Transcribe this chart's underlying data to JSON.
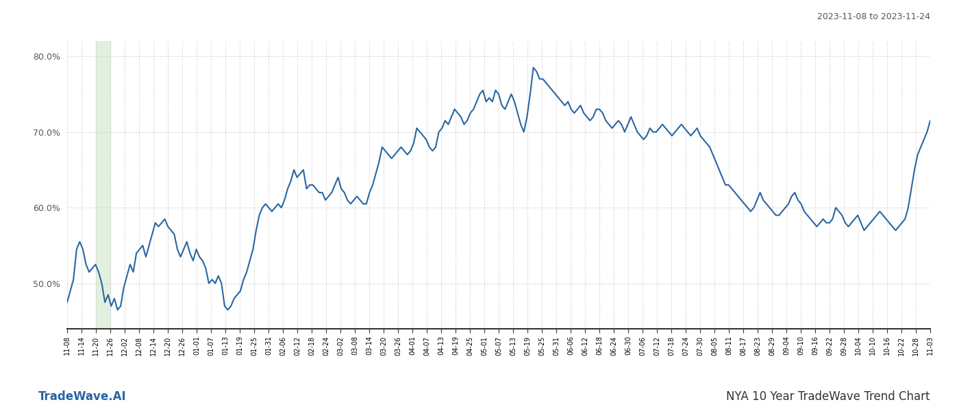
{
  "title_top_right": "2023-11-08 to 2023-11-24",
  "title_bottom_right": "NYA 10 Year TradeWave Trend Chart",
  "title_bottom_left": "TradeWave.AI",
  "line_color": "#2966a3",
  "line_width": 1.5,
  "shade_color": "#d6ecd2",
  "shade_alpha": 0.7,
  "background_color": "#ffffff",
  "grid_color": "#c8c8c8",
  "ylim": [
    44,
    82
  ],
  "yticks": [
    50,
    60,
    70,
    80
  ],
  "xtick_labels": [
    "11-08",
    "11-14",
    "11-20",
    "11-26",
    "12-02",
    "12-08",
    "12-14",
    "12-20",
    "12-26",
    "01-01",
    "01-07",
    "01-13",
    "01-19",
    "01-25",
    "01-31",
    "02-06",
    "02-12",
    "02-18",
    "02-24",
    "03-02",
    "03-08",
    "03-14",
    "03-20",
    "03-26",
    "04-01",
    "04-07",
    "04-13",
    "04-19",
    "04-25",
    "05-01",
    "05-07",
    "05-13",
    "05-19",
    "05-25",
    "05-31",
    "06-06",
    "06-12",
    "06-18",
    "06-24",
    "06-30",
    "07-06",
    "07-12",
    "07-18",
    "07-24",
    "07-30",
    "08-05",
    "08-11",
    "08-17",
    "08-23",
    "08-29",
    "09-04",
    "09-10",
    "09-16",
    "09-22",
    "09-28",
    "10-04",
    "10-10",
    "10-16",
    "10-22",
    "10-28",
    "11-03"
  ],
  "shade_x_start_label": "11-20",
  "shade_x_end_label": "11-26",
  "values": [
    47.5,
    49.0,
    50.5,
    54.5,
    55.5,
    54.5,
    52.5,
    51.5,
    52.0,
    52.5,
    51.5,
    50.0,
    47.5,
    48.5,
    47.0,
    48.0,
    46.5,
    47.0,
    49.5,
    51.0,
    52.5,
    51.5,
    54.0,
    54.5,
    55.0,
    53.5,
    55.0,
    56.5,
    58.0,
    57.5,
    58.0,
    58.5,
    57.5,
    57.0,
    56.5,
    54.5,
    53.5,
    54.5,
    55.5,
    54.0,
    53.0,
    54.5,
    53.5,
    53.0,
    52.0,
    50.0,
    50.5,
    50.0,
    51.0,
    50.0,
    47.0,
    46.5,
    47.0,
    48.0,
    48.5,
    49.0,
    50.5,
    51.5,
    53.0,
    54.5,
    57.0,
    59.0,
    60.0,
    60.5,
    60.0,
    59.5,
    60.0,
    60.5,
    60.0,
    61.0,
    62.5,
    63.5,
    65.0,
    64.0,
    64.5,
    65.0,
    62.5,
    63.0,
    63.0,
    62.5,
    62.0,
    62.0,
    61.0,
    61.5,
    62.0,
    63.0,
    64.0,
    62.5,
    62.0,
    61.0,
    60.5,
    61.0,
    61.5,
    61.0,
    60.5,
    60.5,
    62.0,
    63.0,
    64.5,
    66.0,
    68.0,
    67.5,
    67.0,
    66.5,
    67.0,
    67.5,
    68.0,
    67.5,
    67.0,
    67.5,
    68.5,
    70.5,
    70.0,
    69.5,
    69.0,
    68.0,
    67.5,
    68.0,
    70.0,
    70.5,
    71.5,
    71.0,
    72.0,
    73.0,
    72.5,
    72.0,
    71.0,
    71.5,
    72.5,
    73.0,
    74.0,
    75.0,
    75.5,
    74.0,
    74.5,
    74.0,
    75.5,
    75.0,
    73.5,
    73.0,
    74.0,
    75.0,
    74.0,
    72.5,
    71.0,
    70.0,
    72.0,
    75.0,
    78.5,
    78.0,
    77.0,
    77.0,
    76.5,
    76.0,
    75.5,
    75.0,
    74.5,
    74.0,
    73.5,
    74.0,
    73.0,
    72.5,
    73.0,
    73.5,
    72.5,
    72.0,
    71.5,
    72.0,
    73.0,
    73.0,
    72.5,
    71.5,
    71.0,
    70.5,
    71.0,
    71.5,
    71.0,
    70.0,
    71.0,
    72.0,
    71.0,
    70.0,
    69.5,
    69.0,
    69.5,
    70.5,
    70.0,
    70.0,
    70.5,
    71.0,
    70.5,
    70.0,
    69.5,
    70.0,
    70.5,
    71.0,
    70.5,
    70.0,
    69.5,
    70.0,
    70.5,
    69.5,
    69.0,
    68.5,
    68.0,
    67.0,
    66.0,
    65.0,
    64.0,
    63.0,
    63.0,
    62.5,
    62.0,
    61.5,
    61.0,
    60.5,
    60.0,
    59.5,
    60.0,
    61.0,
    62.0,
    61.0,
    60.5,
    60.0,
    59.5,
    59.0,
    59.0,
    59.5,
    60.0,
    60.5,
    61.5,
    62.0,
    61.0,
    60.5,
    59.5,
    59.0,
    58.5,
    58.0,
    57.5,
    58.0,
    58.5,
    58.0,
    58.0,
    58.5,
    60.0,
    59.5,
    59.0,
    58.0,
    57.5,
    58.0,
    58.5,
    59.0,
    58.0,
    57.0,
    57.5,
    58.0,
    58.5,
    59.0,
    59.5,
    59.0,
    58.5,
    58.0,
    57.5,
    57.0,
    57.5,
    58.0,
    58.5,
    60.0,
    62.5,
    65.0,
    67.0,
    68.0,
    69.0,
    70.0,
    71.5
  ]
}
